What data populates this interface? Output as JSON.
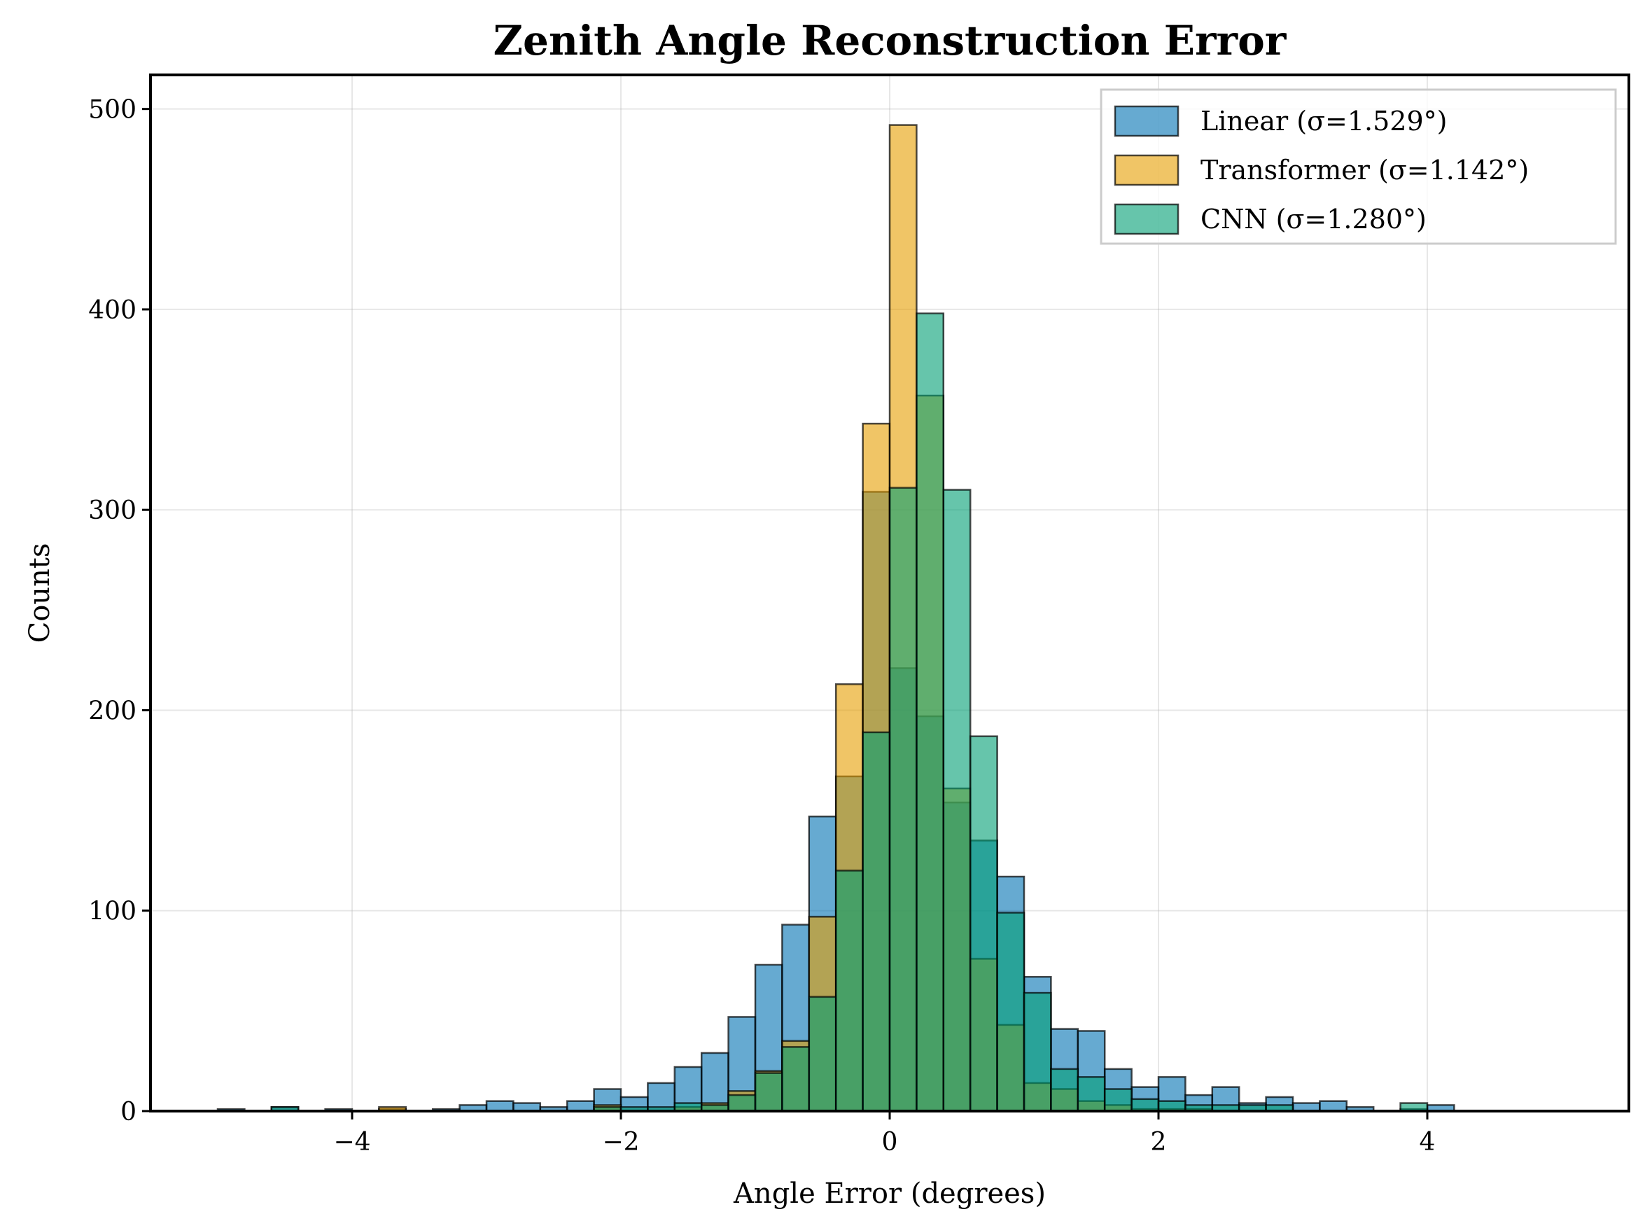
{
  "chart_data": {
    "type": "bar",
    "title": "Zenith Angle Reconstruction Error",
    "xlabel": "Angle Error (degrees)",
    "ylabel": "Counts",
    "xlim": [
      -5.5,
      5.5
    ],
    "ylim": [
      0,
      517
    ],
    "xticks": [
      -4,
      -2,
      0,
      2,
      4
    ],
    "xtick_labels": [
      "−4",
      "−2",
      "0",
      "2",
      "4"
    ],
    "yticks": [
      0,
      100,
      200,
      300,
      400,
      500
    ],
    "ytick_labels": [
      "0",
      "100",
      "200",
      "300",
      "400",
      "500"
    ],
    "grid": true,
    "legend_position": "top-right",
    "bin_start": -5.0,
    "bin_width": 0.2,
    "series": [
      {
        "name": "Linear (σ=1.529°)",
        "color": "#0072B2",
        "values": [
          1,
          0,
          2,
          0,
          1,
          0,
          1,
          0,
          1,
          3,
          5,
          4,
          2,
          5,
          11,
          7,
          14,
          22,
          29,
          47,
          73,
          93,
          147,
          167,
          309,
          221,
          197,
          154,
          135,
          117,
          67,
          41,
          40,
          21,
          12,
          17,
          8,
          12,
          4,
          7,
          4,
          5,
          2,
          0,
          1,
          3,
          0,
          0,
          0,
          0
        ]
      },
      {
        "name": "Transformer (σ=1.142°)",
        "color": "#E69F00",
        "values": [
          0,
          0,
          0,
          0,
          0,
          0,
          2,
          0,
          0,
          0,
          0,
          0,
          0,
          0,
          3,
          0,
          0,
          2,
          4,
          10,
          20,
          35,
          97,
          213,
          343,
          492,
          357,
          161,
          76,
          43,
          14,
          11,
          5,
          3,
          1,
          1,
          1,
          0,
          0,
          0,
          0,
          0,
          0,
          0,
          0,
          0,
          0,
          0,
          0,
          0
        ]
      },
      {
        "name": "CNN (σ=1.280°)",
        "color": "#009E73",
        "values": [
          0,
          0,
          2,
          0,
          0,
          0,
          0,
          0,
          0,
          0,
          0,
          0,
          0,
          0,
          2,
          2,
          2,
          4,
          3,
          8,
          19,
          32,
          57,
          120,
          189,
          311,
          398,
          310,
          187,
          99,
          59,
          21,
          17,
          11,
          6,
          5,
          3,
          3,
          3,
          3,
          0,
          0,
          0,
          0,
          4,
          0,
          0,
          0,
          0,
          0
        ]
      }
    ]
  }
}
